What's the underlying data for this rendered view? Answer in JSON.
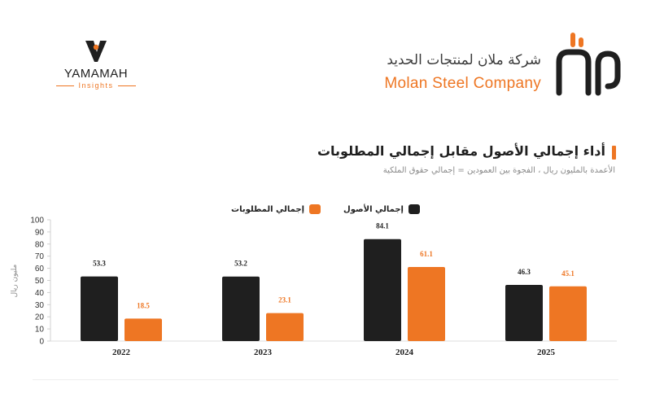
{
  "header": {
    "left_brand": {
      "name": "YAMAMAH",
      "tagline": "Insights",
      "icon": "yamamah-mark-icon"
    },
    "right_brand": {
      "arabic_name": "شركة ملان لمنتجات الحديد",
      "english_name": "Molan Steel Company",
      "icon": "molan-logo-icon"
    }
  },
  "title": "أداء إجمالي الأصول مقابل إجمالي المطلوبات",
  "subtitle": "الأعمدة بالمليون ريال ، الفجوة بين العمودين = إجمالي حقوق الملكية",
  "colors": {
    "assets": "#1f1f1f",
    "liabilities": "#ee7623",
    "accent": "#ee7623"
  },
  "chart_data": {
    "type": "bar",
    "categories": [
      "2022",
      "2023",
      "2024",
      "2025"
    ],
    "series": [
      {
        "name": "إجمالي الأصول",
        "values": [
          53.3,
          53.2,
          84.1,
          46.3
        ],
        "color": "#1f1f1f"
      },
      {
        "name": "إجمالي المطلوبات",
        "values": [
          18.5,
          23.1,
          61.1,
          45.1
        ],
        "color": "#ee7623"
      }
    ],
    "ylabel": "مليون ريال",
    "xlabel": "",
    "ylim": [
      0,
      100
    ],
    "yticks": [
      0,
      10,
      20,
      30,
      40,
      50,
      60,
      70,
      80,
      90,
      100
    ],
    "grid": false,
    "legend_position": "top-center"
  }
}
